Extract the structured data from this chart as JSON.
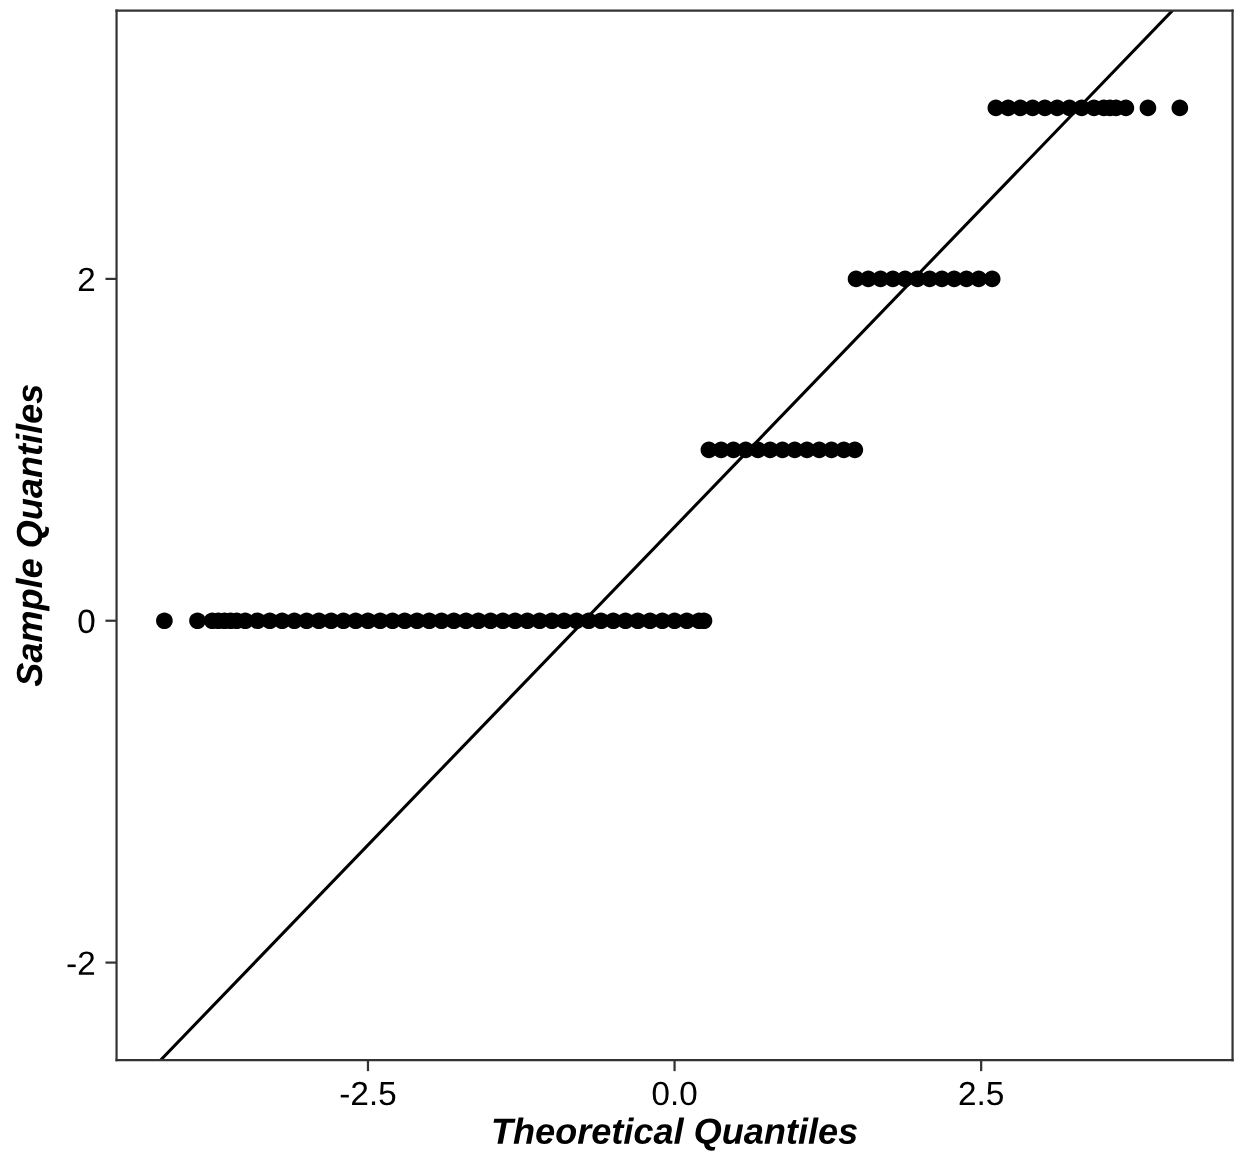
{
  "chart_data": {
    "type": "scatter",
    "xlabel": "Theoretical Quantiles",
    "ylabel": "Sample Quantiles",
    "xlim": [
      -4.55,
      4.55
    ],
    "ylim": [
      -2.57,
      3.57
    ],
    "xticks": [
      {
        "value": -2.5,
        "label": "-2.5"
      },
      {
        "value": 0,
        "label": "0.0"
      },
      {
        "value": 2.5,
        "label": "2.5"
      }
    ],
    "yticks": [
      -2,
      0,
      2
    ],
    "grid": false,
    "series": [
      {
        "marker": "circle",
        "color": "#000000",
        "x": [
          -4.16,
          -3.89,
          -3.77,
          -3.72,
          -3.67,
          -3.62,
          -3.57,
          -3.5,
          -3.4,
          -3.3,
          -3.2,
          -3.1,
          -3.0,
          -2.9,
          -2.8,
          -2.7,
          -2.6,
          -2.5,
          -2.4,
          -2.3,
          -2.2,
          -2.1,
          -2.0,
          -1.9,
          -1.8,
          -1.7,
          -1.6,
          -1.5,
          -1.4,
          -1.3,
          -1.2,
          -1.1,
          -1.0,
          -0.9,
          -0.8,
          -0.7,
          -0.6,
          -0.5,
          -0.4,
          -0.3,
          -0.2,
          -0.1,
          0.0,
          0.1,
          0.2,
          0.24,
          0.28,
          0.38,
          0.48,
          0.58,
          0.68,
          0.78,
          0.88,
          0.98,
          1.08,
          1.18,
          1.28,
          1.38,
          1.47,
          1.48,
          1.58,
          1.68,
          1.78,
          1.88,
          1.98,
          2.08,
          2.18,
          2.28,
          2.38,
          2.48,
          2.59,
          2.62,
          2.72,
          2.82,
          2.92,
          3.02,
          3.12,
          3.22,
          3.32,
          3.42,
          3.5,
          3.55,
          3.6,
          3.68,
          3.86,
          4.12
        ],
        "values": [
          0,
          0,
          0,
          0,
          0,
          0,
          0,
          0,
          0,
          0,
          0,
          0,
          0,
          0,
          0,
          0,
          0,
          0,
          0,
          0,
          0,
          0,
          0,
          0,
          0,
          0,
          0,
          0,
          0,
          0,
          0,
          0,
          0,
          0,
          0,
          0,
          0,
          0,
          0,
          0,
          0,
          0,
          0,
          0,
          0,
          0,
          1,
          1,
          1,
          1,
          1,
          1,
          1,
          1,
          1,
          1,
          1,
          1,
          1,
          2,
          2,
          2,
          2,
          2,
          2,
          2,
          2,
          2,
          2,
          2,
          2,
          3,
          3,
          3,
          3,
          3,
          3,
          3,
          3,
          3,
          3,
          3,
          3,
          3,
          3,
          3
        ]
      },
      {
        "type": "line",
        "marker": "none",
        "line_style": "solid",
        "color": "#000000",
        "x": [
          -4.19,
          4.06
        ],
        "values": [
          -2.57,
          3.57
        ]
      }
    ]
  }
}
